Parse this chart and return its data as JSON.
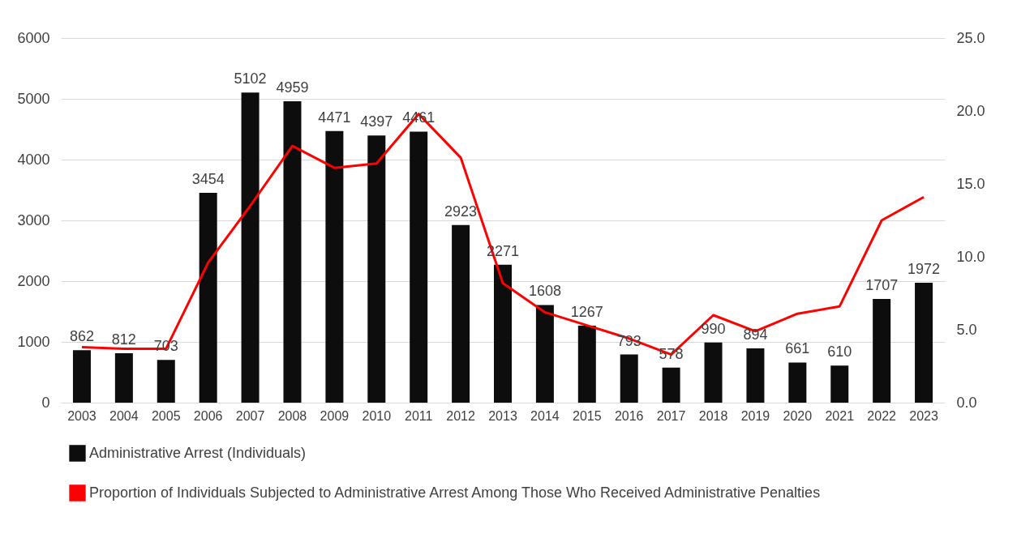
{
  "chart_data": {
    "type": "bar",
    "categories": [
      "2003",
      "2004",
      "2005",
      "2006",
      "2007",
      "2008",
      "2009",
      "2010",
      "2011",
      "2012",
      "2013",
      "2014",
      "2015",
      "2016",
      "2017",
      "2018",
      "2019",
      "2020",
      "2021",
      "2022",
      "2023"
    ],
    "series": [
      {
        "name": "Administrative Arrest (Individuals)",
        "color": "#0d0d0d",
        "values": [
          862,
          812,
          703,
          3454,
          5102,
          4959,
          4471,
          4397,
          4461,
          2923,
          2271,
          1608,
          1267,
          793,
          578,
          990,
          894,
          661,
          610,
          1707,
          1972
        ]
      },
      {
        "name": "Proportion of Individuals Subjected to Administrative Arrest Among Those Who Received Administrative Penalties",
        "type": "line",
        "axis": "y2",
        "color": "#ff0000",
        "values": [
          3.8,
          3.7,
          3.7,
          9.6,
          13.5,
          17.6,
          16.1,
          16.4,
          19.8,
          16.8,
          8.2,
          6.2,
          5.3,
          4.4,
          3.3,
          6.0,
          4.9,
          6.1,
          6.6,
          12.5,
          14.1
        ]
      }
    ],
    "ylim": [
      0,
      6000
    ],
    "yticks": [
      0,
      1000,
      2000,
      3000,
      4000,
      5000,
      6000
    ],
    "y2lim": [
      0,
      25
    ],
    "y2ticks": [
      {
        "value": 0,
        "label": "0.0"
      },
      {
        "value": 5,
        "label": "5.0"
      },
      {
        "value": 10,
        "label": "10.0"
      },
      {
        "value": 15,
        "label": "15.0"
      },
      {
        "value": 20,
        "label": "20.0"
      },
      {
        "value": 25,
        "label": "25.0"
      }
    ],
    "grid": "y",
    "legend": "bottom",
    "marker": "none",
    "line_style": "solid",
    "value_labels": [
      "862",
      "812",
      "703",
      "3454",
      "5102",
      "4959",
      "4471",
      "4397",
      "4461",
      "2923",
      "2271",
      "1608",
      "1267",
      "793",
      "578",
      "990",
      "894",
      "661",
      "610",
      "1707",
      "1972"
    ]
  }
}
